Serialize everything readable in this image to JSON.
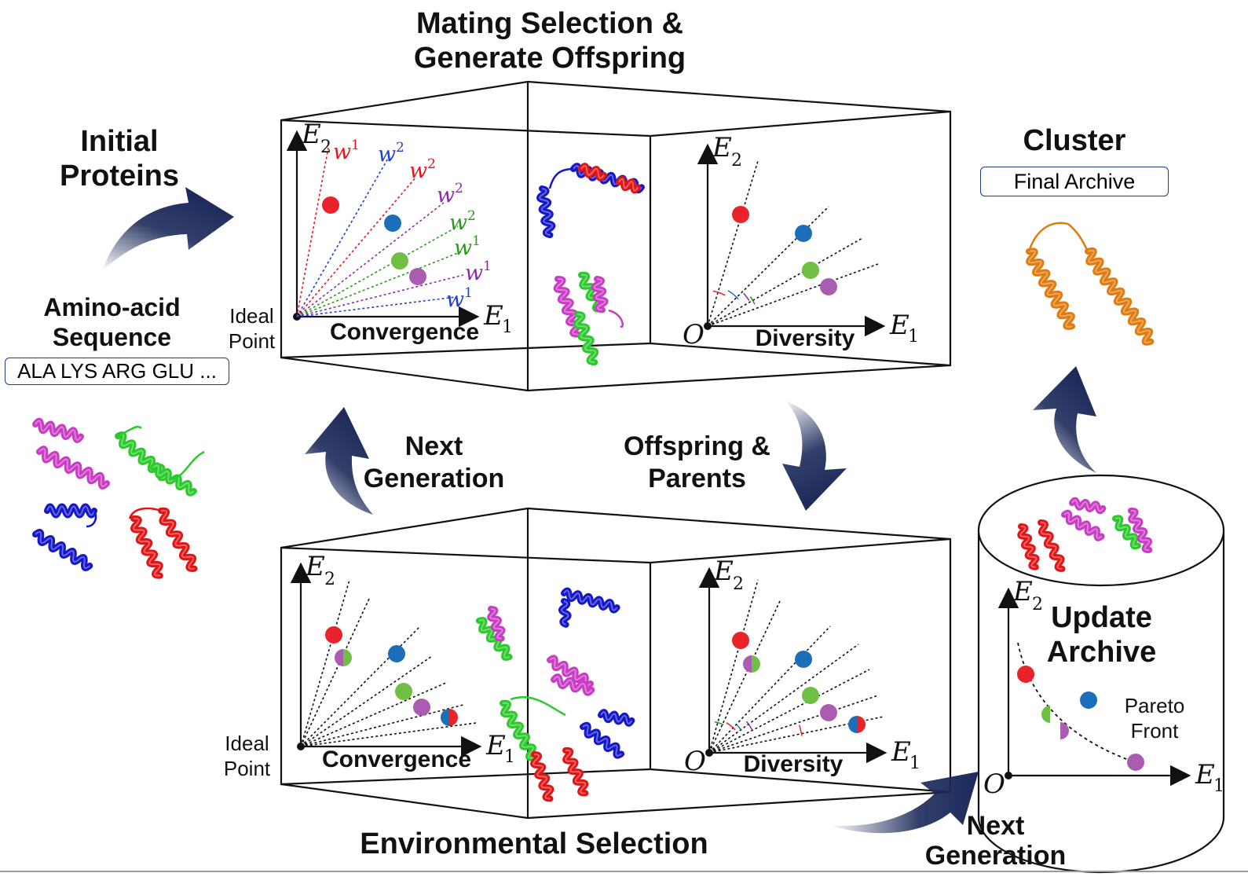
{
  "titles": {
    "mating": "Mating Selection &",
    "mating2": "Generate Offspring",
    "initial": "Initial",
    "initial2": "Proteins",
    "cluster": "Cluster",
    "final_archive": "Final Archive",
    "aa_seq": "Amino-acid",
    "aa_seq2": "Sequence",
    "sequence_value": "ALA LYS ARG GLU ...",
    "next_gen": "Next",
    "next_gen2": "Generation",
    "offspring": "Offspring &",
    "offspring2": "Parents",
    "env_selection": "Environmental Selection",
    "update_archive": "Update",
    "update_archive2": "Archive",
    "pareto": "Pareto",
    "pareto2": "Front",
    "next_gen_bottom": "Next",
    "next_gen_bottom2": "Generation"
  },
  "plot_labels": {
    "ideal_point": "Ideal",
    "ideal_point2": "Point",
    "convergence": "Convergence",
    "diversity": "Diversity",
    "origin": "O",
    "axis_e": "E",
    "sub1": "1",
    "sub2": "2"
  },
  "weights": {
    "w": "w",
    "labels": [
      {
        "sup": "1",
        "color": "#e8141c"
      },
      {
        "sup": "2",
        "color": "#1f3fd0"
      },
      {
        "sup": "2",
        "color": "#e8141c"
      },
      {
        "sup": "2",
        "color": "#8a2aa8"
      },
      {
        "sup": "2",
        "color": "#2a9a1a"
      },
      {
        "sup": "1",
        "color": "#2a9a1a"
      },
      {
        "sup": "1",
        "color": "#8a2aa8"
      },
      {
        "sup": "1",
        "color": "#1f3fd0"
      }
    ]
  },
  "colors": {
    "red": "#e8232a",
    "blue": "#1a6fb8",
    "green": "#6fbf44",
    "purple": "#a95cb0",
    "arrow": "#1c2a5a",
    "orange": "#e07b10",
    "magenta": "#c93cc4",
    "helix_blue": "#1418c8",
    "helix_red": "#e01616",
    "helix_green": "#2cc92c"
  }
}
